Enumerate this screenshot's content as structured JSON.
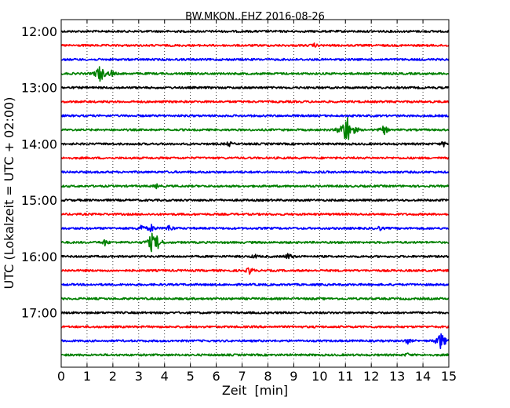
{
  "chart_data": {
    "type": "line",
    "title": "BW.MKON..EHZ 2016-08-26",
    "xlabel": "Zeit  [min]",
    "ylabel": "UTC (Lokalzeit = UTC + 02:00)",
    "xlim": [
      0,
      15
    ],
    "x_ticks": [
      "0",
      "1",
      "2",
      "3",
      "4",
      "5",
      "6",
      "7",
      "8",
      "9",
      "10",
      "11",
      "12",
      "13",
      "14",
      "15"
    ],
    "y_tick_labels": [
      "12:00",
      "13:00",
      "14:00",
      "15:00",
      "16:00",
      "17:00"
    ],
    "grid": "vertical dotted",
    "trace_interval_minutes": 15,
    "trace_colors": [
      "#000000",
      "#ff0000",
      "#0000ff",
      "#008000"
    ],
    "traces": [
      {
        "start": "12:00",
        "color": "#000000",
        "events": []
      },
      {
        "start": "12:15",
        "color": "#ff0000",
        "events": [
          {
            "t": 9.8,
            "amp": 0.2
          }
        ]
      },
      {
        "start": "12:30",
        "color": "#0000ff",
        "events": []
      },
      {
        "start": "12:45",
        "color": "#008000",
        "events": [
          {
            "t": 1.5,
            "amp": 1.2
          },
          {
            "t": 1.95,
            "amp": 0.4
          }
        ]
      },
      {
        "start": "13:00",
        "color": "#000000",
        "events": []
      },
      {
        "start": "13:15",
        "color": "#ff0000",
        "events": []
      },
      {
        "start": "13:30",
        "color": "#0000ff",
        "events": []
      },
      {
        "start": "13:45",
        "color": "#008000",
        "events": [
          {
            "t": 11.05,
            "amp": 2.0
          },
          {
            "t": 12.5,
            "amp": 0.6
          }
        ]
      },
      {
        "start": "14:00",
        "color": "#000000",
        "events": [
          {
            "t": 6.5,
            "amp": 0.3
          },
          {
            "t": 14.8,
            "amp": 0.3
          }
        ]
      },
      {
        "start": "14:15",
        "color": "#ff0000",
        "events": []
      },
      {
        "start": "14:30",
        "color": "#0000ff",
        "events": []
      },
      {
        "start": "14:45",
        "color": "#008000",
        "events": [
          {
            "t": 3.7,
            "amp": 0.25
          }
        ]
      },
      {
        "start": "15:00",
        "color": "#000000",
        "events": []
      },
      {
        "start": "15:15",
        "color": "#ff0000",
        "events": []
      },
      {
        "start": "15:30",
        "color": "#0000ff",
        "events": [
          {
            "t": 3.1,
            "amp": 0.5
          },
          {
            "t": 3.5,
            "amp": 0.5
          },
          {
            "t": 4.2,
            "amp": 0.5
          },
          {
            "t": 12.3,
            "amp": 0.3
          }
        ]
      },
      {
        "start": "15:45",
        "color": "#008000",
        "events": [
          {
            "t": 1.7,
            "amp": 0.4
          },
          {
            "t": 3.5,
            "amp": 1.1
          },
          {
            "t": 3.75,
            "amp": 0.8
          }
        ]
      },
      {
        "start": "16:00",
        "color": "#000000",
        "events": [
          {
            "t": 7.5,
            "amp": 0.25
          },
          {
            "t": 8.8,
            "amp": 0.45
          }
        ]
      },
      {
        "start": "16:15",
        "color": "#ff0000",
        "events": [
          {
            "t": 7.3,
            "amp": 0.5
          }
        ]
      },
      {
        "start": "16:30",
        "color": "#0000ff",
        "events": []
      },
      {
        "start": "16:45",
        "color": "#008000",
        "events": []
      },
      {
        "start": "17:00",
        "color": "#000000",
        "events": []
      },
      {
        "start": "17:15",
        "color": "#ff0000",
        "events": []
      },
      {
        "start": "17:30",
        "color": "#0000ff",
        "events": [
          {
            "t": 13.4,
            "amp": 0.35
          },
          {
            "t": 14.7,
            "amp": 1.2
          }
        ]
      },
      {
        "start": "17:45",
        "color": "#008000",
        "events": [
          {
            "t": 13.4,
            "amp": 0.2
          }
        ]
      }
    ]
  }
}
